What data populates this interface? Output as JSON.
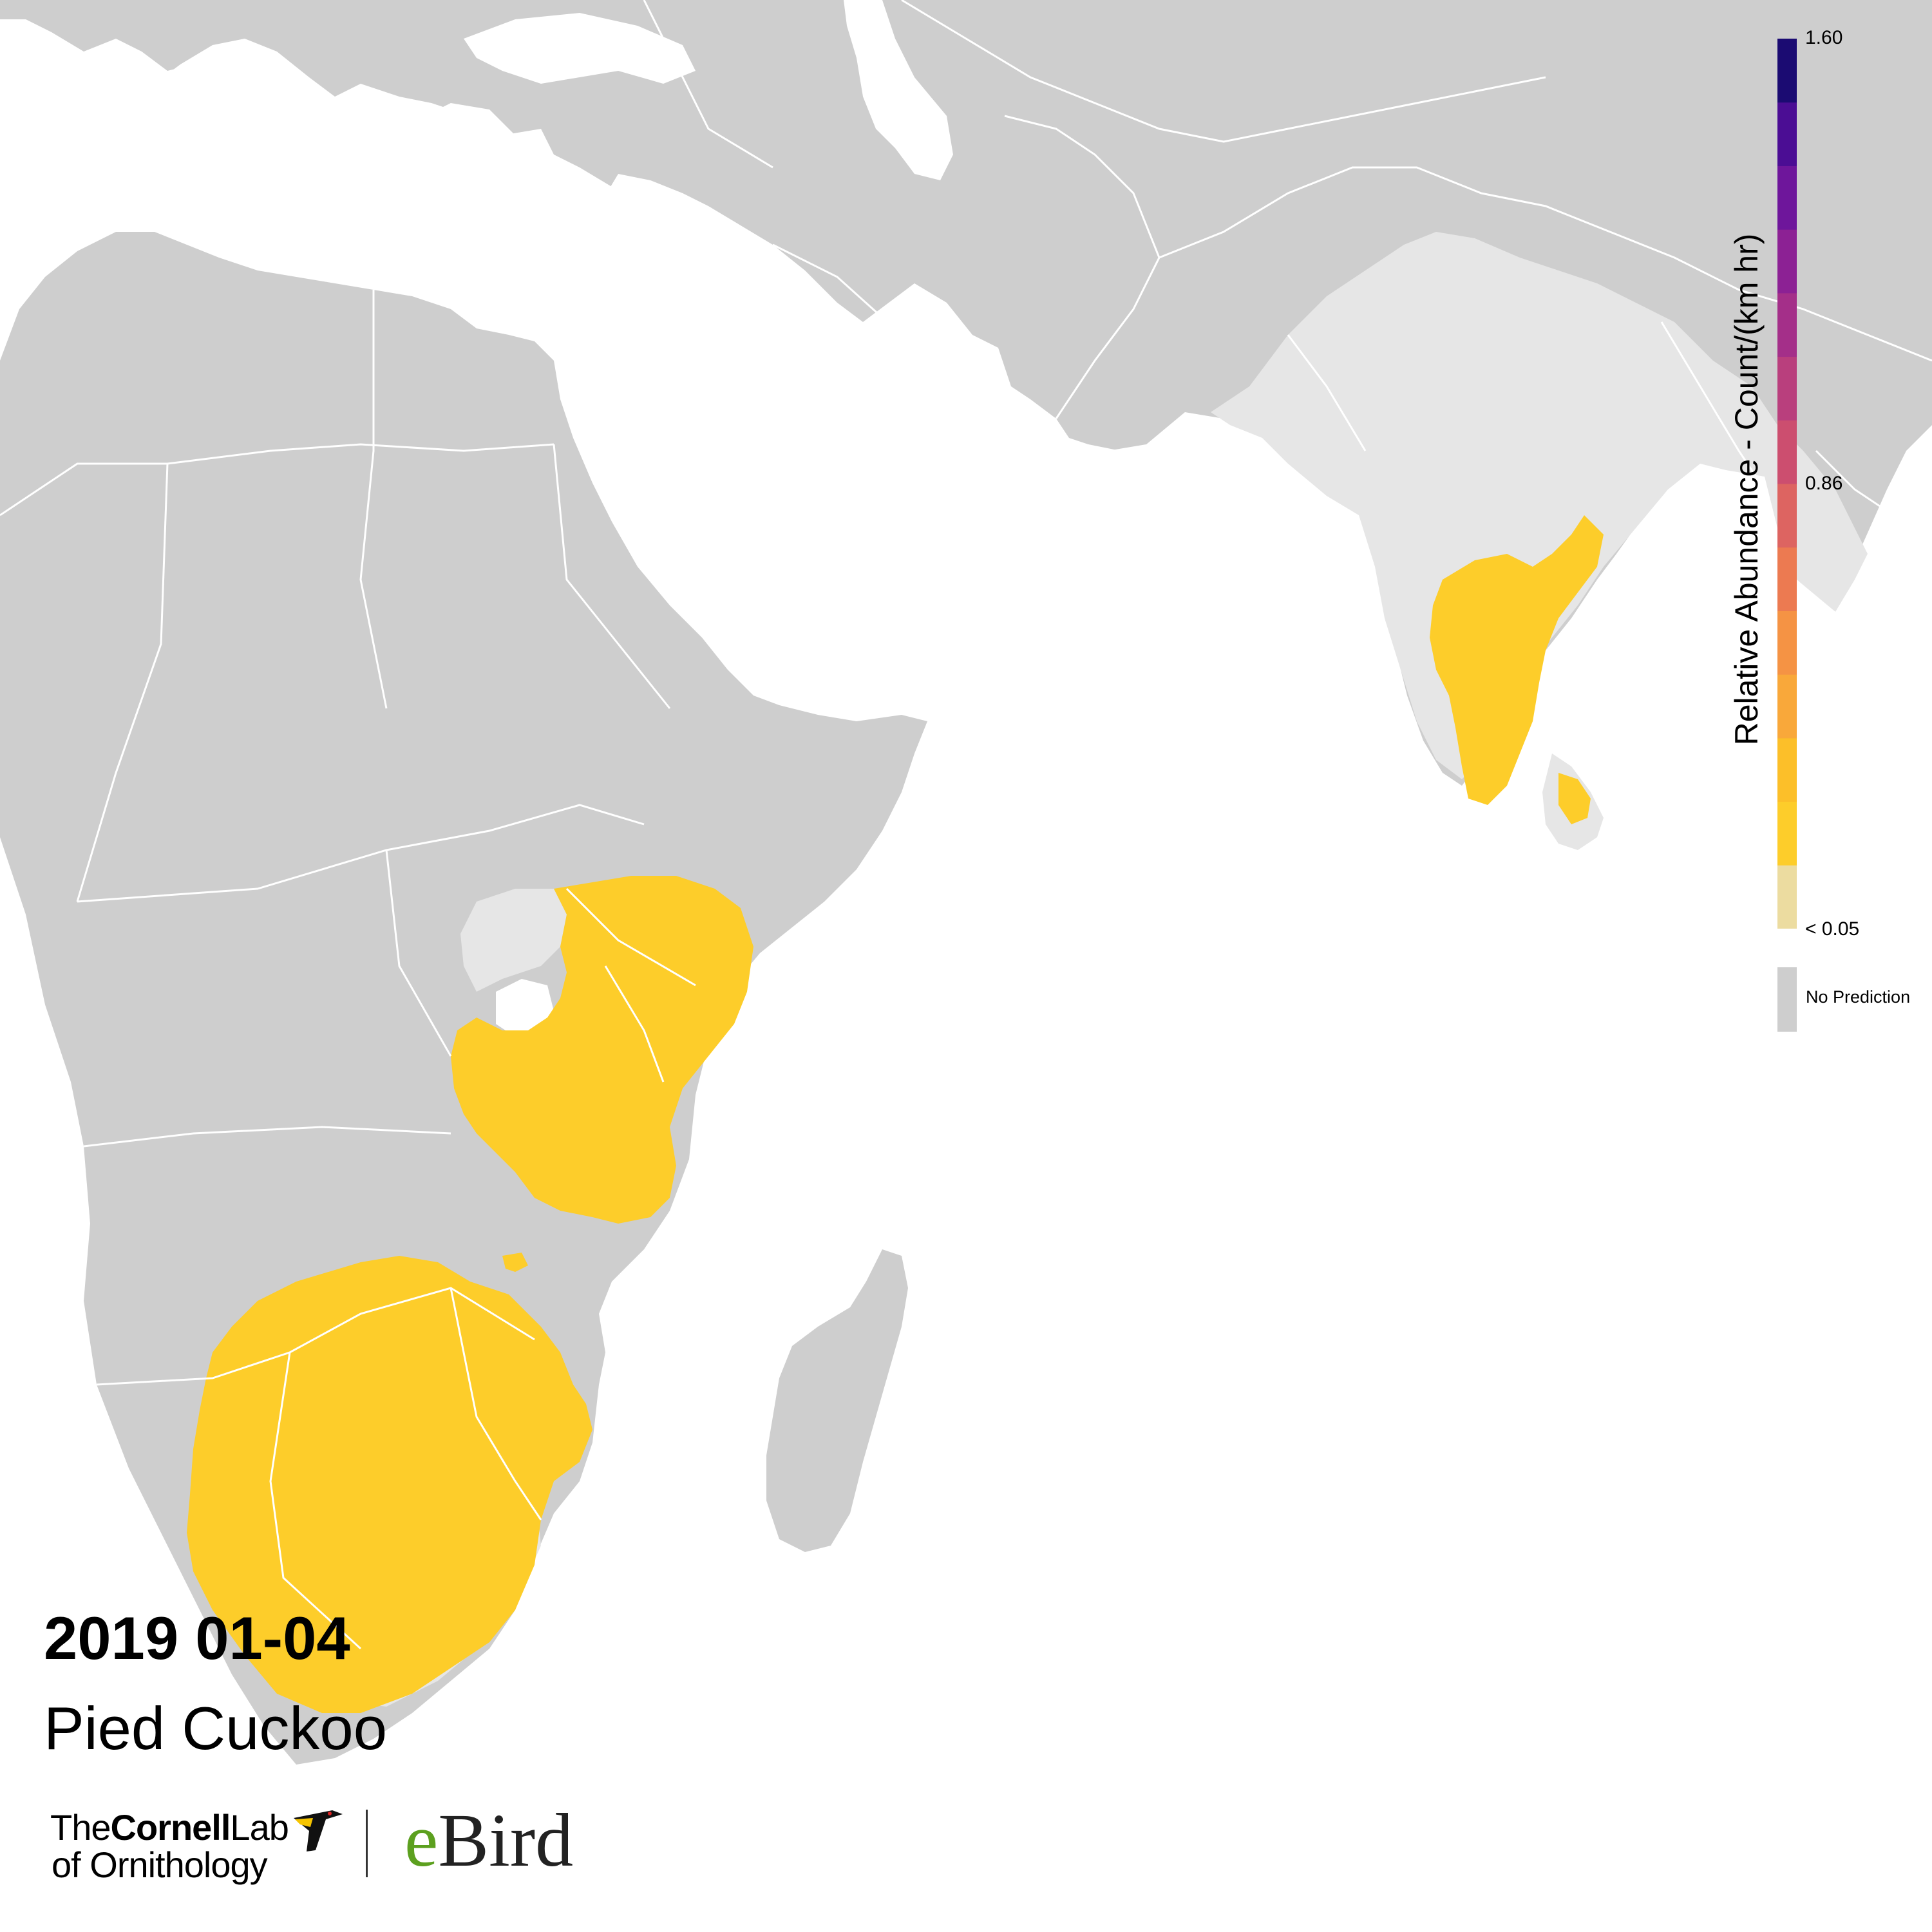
{
  "date": "2019 01-04",
  "species": "Pied Cuckoo",
  "legend": {
    "title": "Relative Abundance - Count/(km hr)",
    "max_label": "1.60",
    "mid_label": "0.86",
    "min_label": "< 0.05",
    "no_prediction_label": "No Prediction",
    "ramp_colors": [
      "#ecdca0",
      "#fdcd2a",
      "#fcbf29",
      "#f9a83a",
      "#f59344",
      "#ec7a51",
      "#dd6461",
      "#cc4e6f",
      "#b93f7d",
      "#a42f89",
      "#8c2194",
      "#6e169b",
      "#4b0d94",
      "#1b0b72"
    ]
  },
  "map_colors": {
    "no_prediction": "#cecece",
    "predicted_zero": "#e6e6e6",
    "abundance_low": "#fdcd2a",
    "abundance_deep": "#fbbf20",
    "water": "#ffffff",
    "borders": "#ffffff"
  },
  "logos": {
    "cornell_the": "The",
    "cornell_name": "Cornell",
    "cornell_lab": "Lab",
    "cornell_ornithology": "of Ornithology",
    "ebird_e": "e",
    "ebird_rest": "Bird"
  }
}
